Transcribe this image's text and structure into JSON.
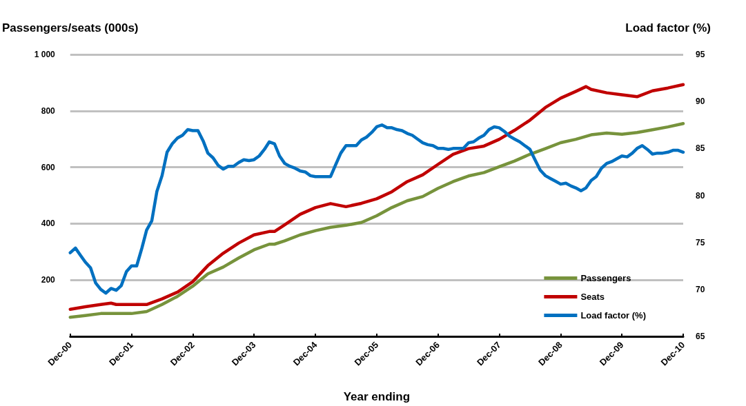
{
  "chart_data": {
    "type": "line",
    "xlabel": "Year ending",
    "ylabel": "Passengers/seats (000s)",
    "y2label": "Load factor (%)",
    "xlim": [
      "2000-12",
      "2010-12"
    ],
    "xticks": [
      {
        "value": "2000-12",
        "label": "Dec-00"
      },
      {
        "value": "2001-12",
        "label": "Dec-01"
      },
      {
        "value": "2002-12",
        "label": "Dec-02"
      },
      {
        "value": "2003-12",
        "label": "Dec-03"
      },
      {
        "value": "2004-12",
        "label": "Dec-04"
      },
      {
        "value": "2005-12",
        "label": "Dec-05"
      },
      {
        "value": "2006-12",
        "label": "Dec-06"
      },
      {
        "value": "2007-12",
        "label": "Dec-07"
      },
      {
        "value": "2008-12",
        "label": "Dec-08"
      },
      {
        "value": "2009-12",
        "label": "Dec-09"
      },
      {
        "value": "2010-12",
        "label": "Dec-10"
      }
    ],
    "ylim": [
      0,
      1000
    ],
    "yticks": [
      {
        "value": 0,
        "label": null
      },
      200,
      400,
      600,
      800,
      {
        "value": 1000,
        "label": "1 000"
      }
    ],
    "y2lim": [
      65,
      95
    ],
    "y2ticks": [
      65,
      70,
      75,
      80,
      85,
      90,
      95
    ],
    "grid": "y",
    "legend": "bottom right",
    "marker": "none",
    "line_style": "solid",
    "series": [
      {
        "name": "Passengers",
        "color": "#77933c",
        "x": [
          "2000-12",
          "2001-03",
          "2001-06",
          "2001-09",
          "2001-12",
          "2002-03",
          "2002-06",
          "2002-09",
          "2002-12",
          "2003-03",
          "2003-06",
          "2003-09",
          "2003-12",
          "2004-03",
          "2004-04",
          "2004-06",
          "2004-09",
          "2004-12",
          "2005-03",
          "2005-06",
          "2005-09",
          "2005-12",
          "2006-03",
          "2006-06",
          "2006-09",
          "2006-12",
          "2007-03",
          "2007-06",
          "2007-09",
          "2007-12",
          "2008-03",
          "2008-06",
          "2008-09",
          "2008-12",
          "2009-03",
          "2009-06",
          "2009-09",
          "2009-12",
          "2010-03",
          "2010-06",
          "2010-09",
          "2010-12"
        ],
        "values": [
          68,
          74,
          81,
          81,
          81,
          88,
          113,
          142,
          178,
          222,
          246,
          278,
          307,
          327,
          327,
          339,
          360,
          375,
          387,
          394,
          404,
          428,
          457,
          481,
          496,
          525,
          549,
          569,
          581,
          602,
          622,
          646,
          666,
          687,
          699,
          715,
          721,
          717,
          723,
          733,
          743,
          755
        ]
      },
      {
        "name": "Seats",
        "color": "#c00000",
        "x": [
          "2000-12",
          "2001-03",
          "2001-06",
          "2001-08",
          "2001-09",
          "2001-12",
          "2002-03",
          "2002-06",
          "2002-09",
          "2002-12",
          "2003-03",
          "2003-06",
          "2003-09",
          "2003-12",
          "2004-03",
          "2004-04",
          "2004-06",
          "2004-09",
          "2004-12",
          "2005-03",
          "2005-06",
          "2005-09",
          "2005-12",
          "2006-03",
          "2006-06",
          "2006-09",
          "2006-12",
          "2007-03",
          "2007-06",
          "2007-09",
          "2007-12",
          "2008-03",
          "2008-06",
          "2008-09",
          "2008-12",
          "2009-03",
          "2009-05",
          "2009-06",
          "2009-09",
          "2009-12",
          "2010-03",
          "2010-06",
          "2010-09",
          "2010-12"
        ],
        "values": [
          96,
          105,
          113,
          118,
          113,
          113,
          113,
          133,
          157,
          194,
          251,
          295,
          331,
          360,
          372,
          372,
          396,
          433,
          457,
          471,
          460,
          472,
          488,
          513,
          549,
          573,
          610,
          646,
          666,
          675,
          699,
          731,
          767,
          812,
          845,
          869,
          886,
          876,
          864,
          857,
          850,
          871,
          881,
          893
        ]
      },
      {
        "name": "Load factor (%)",
        "color": "#0070c0",
        "axis": "y2",
        "x": [
          "2000-12",
          "2001-01",
          "2001-02",
          "2001-03",
          "2001-04",
          "2001-05",
          "2001-06",
          "2001-07",
          "2001-08",
          "2001-09",
          "2001-10",
          "2001-11",
          "2001-12",
          "2002-01",
          "2002-02",
          "2002-03",
          "2002-04",
          "2002-05",
          "2002-06",
          "2002-07",
          "2002-08",
          "2002-09",
          "2002-10",
          "2002-11",
          "2002-12",
          "2003-01",
          "2003-02",
          "2003-03",
          "2003-04",
          "2003-05",
          "2003-06",
          "2003-07",
          "2003-08",
          "2003-09",
          "2003-10",
          "2003-11",
          "2003-12",
          "2004-01",
          "2004-02",
          "2004-03",
          "2004-04",
          "2004-05",
          "2004-06",
          "2004-07",
          "2004-08",
          "2004-09",
          "2004-10",
          "2004-11",
          "2004-12",
          "2005-01",
          "2005-02",
          "2005-03",
          "2005-04",
          "2005-05",
          "2005-06",
          "2005-07",
          "2005-08",
          "2005-09",
          "2005-10",
          "2005-11",
          "2005-12",
          "2006-01",
          "2006-02",
          "2006-03",
          "2006-04",
          "2006-05",
          "2006-06",
          "2006-07",
          "2006-08",
          "2006-09",
          "2006-10",
          "2006-11",
          "2006-12",
          "2007-01",
          "2007-02",
          "2007-03",
          "2007-04",
          "2007-05",
          "2007-06",
          "2007-07",
          "2007-08",
          "2007-09",
          "2007-10",
          "2007-11",
          "2007-12",
          "2008-01",
          "2008-02",
          "2008-03",
          "2008-04",
          "2008-05",
          "2008-06",
          "2008-07",
          "2008-08",
          "2008-09",
          "2008-10",
          "2008-11",
          "2008-12",
          "2009-01",
          "2009-02",
          "2009-03",
          "2009-04",
          "2009-05",
          "2009-06",
          "2009-07",
          "2009-08",
          "2009-09",
          "2009-10",
          "2009-11",
          "2009-12",
          "2010-01",
          "2010-02",
          "2010-03",
          "2010-04",
          "2010-05",
          "2010-06",
          "2010-07",
          "2010-08",
          "2010-09",
          "2010-10",
          "2010-11",
          "2010-12"
        ],
        "values": [
          73.9,
          74.4,
          73.6,
          72.9,
          72.3,
          70.7,
          70.0,
          69.6,
          70.1,
          69.9,
          70.4,
          71.9,
          72.5,
          72.5,
          74.4,
          76.3,
          77.3,
          80.4,
          82.1,
          84.6,
          85.5,
          86.1,
          86.4,
          87.0,
          86.9,
          86.9,
          85.8,
          84.5,
          84.0,
          83.2,
          82.8,
          83.1,
          83.1,
          83.5,
          83.8,
          83.7,
          83.8,
          84.2,
          84.9,
          85.7,
          85.5,
          84.2,
          83.4,
          83.1,
          82.9,
          82.6,
          82.5,
          82.1,
          82.0,
          82.0,
          82.0,
          82.0,
          83.3,
          84.5,
          85.3,
          85.3,
          85.3,
          85.9,
          86.2,
          86.7,
          87.3,
          87.5,
          87.2,
          87.2,
          87.0,
          86.9,
          86.6,
          86.4,
          86.0,
          85.6,
          85.4,
          85.3,
          85.0,
          85.0,
          84.9,
          85.0,
          85.0,
          85.0,
          85.6,
          85.7,
          86.1,
          86.4,
          87.0,
          87.3,
          87.2,
          86.8,
          86.3,
          86.0,
          85.7,
          85.3,
          84.9,
          83.8,
          82.7,
          82.1,
          81.8,
          81.5,
          81.2,
          81.3,
          81.0,
          80.8,
          80.5,
          80.8,
          81.6,
          82.0,
          82.9,
          83.4,
          83.6,
          83.9,
          84.2,
          84.1,
          84.5,
          85.0,
          85.3,
          84.9,
          84.4,
          84.5,
          84.5,
          84.6,
          84.8,
          84.8,
          84.6
        ]
      }
    ]
  }
}
